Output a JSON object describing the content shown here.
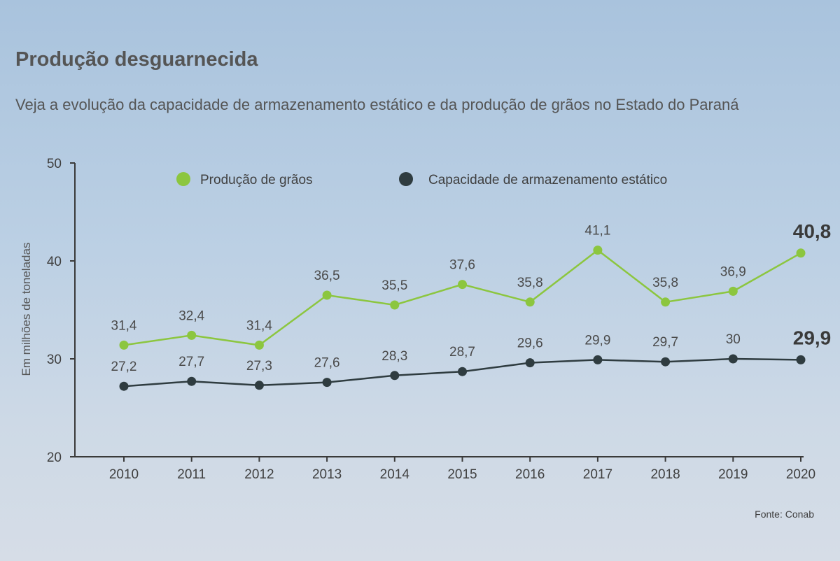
{
  "title": "Produção desguarnecida",
  "subtitle": "Veja a evolução da capacidade de armazenamento estático e da produção de grãos no Estado do Paraná",
  "source": "Fonte: Conab",
  "colors": {
    "production": "#8cc63f",
    "storage": "#2f3c40",
    "axis": "#3a3a3a"
  },
  "chart_data": {
    "type": "line",
    "title": "Produção desguarnecida",
    "subtitle": "Veja a evolução da capacidade de armazenamento estático e da produção de grãos no Estado do Paraná",
    "xlabel": "",
    "ylabel": "Em milhões de toneladas",
    "x": [
      "2010",
      "2011",
      "2012",
      "2013",
      "2014",
      "2015",
      "2016",
      "2017",
      "2018",
      "2019",
      "2020"
    ],
    "ylim": [
      20,
      50
    ],
    "yticks": [
      "20",
      "30",
      "40",
      "50"
    ],
    "grid": false,
    "legend_position": "top",
    "series": [
      {
        "name": "Produção de grãos",
        "color": "#8cc63f",
        "values": [
          31.4,
          32.4,
          31.4,
          36.5,
          35.5,
          37.6,
          35.8,
          41.1,
          35.8,
          36.9,
          40.8
        ],
        "labels": [
          "31,4",
          "32,4",
          "31,4",
          "36,5",
          "35,5",
          "37,6",
          "35,8",
          "41,1",
          "35,8",
          "36,9",
          "40,8"
        ]
      },
      {
        "name": "Capacidade de armazenamento estático",
        "color": "#2f3c40",
        "values": [
          27.2,
          27.7,
          27.3,
          27.6,
          28.3,
          28.7,
          29.6,
          29.9,
          29.7,
          30,
          29.9
        ],
        "labels": [
          "27,2",
          "27,7",
          "27,3",
          "27,6",
          "28,3",
          "28,7",
          "29,6",
          "29,9",
          "29,7",
          "30",
          "29,9"
        ]
      }
    ]
  }
}
